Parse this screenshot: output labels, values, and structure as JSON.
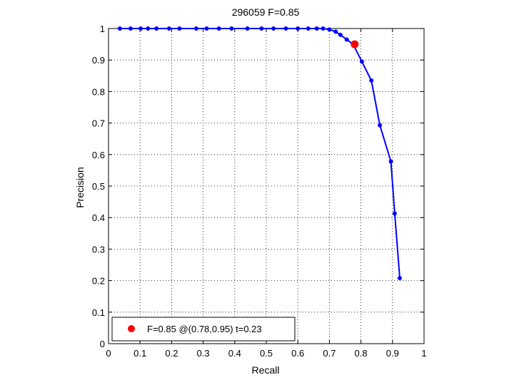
{
  "chart_data": {
    "type": "line",
    "title": "296059 F=0.85",
    "xlabel": "Recall",
    "ylabel": "Precision",
    "xlim": [
      0,
      1
    ],
    "ylim": [
      0,
      1
    ],
    "grid": true,
    "xticks": [
      "0",
      "0.1",
      "0.2",
      "0.3",
      "0.4",
      "0.5",
      "0.6",
      "0.7",
      "0.8",
      "0.9",
      "1"
    ],
    "yticks": [
      "0",
      "0.1",
      "0.2",
      "0.3",
      "0.4",
      "0.5",
      "0.6",
      "0.7",
      "0.8",
      "0.9",
      "1"
    ],
    "series": [
      {
        "color": "#0000ff",
        "x": [
          0.036,
          0.07,
          0.102,
          0.125,
          0.152,
          0.192,
          0.225,
          0.278,
          0.311,
          0.35,
          0.39,
          0.44,
          0.485,
          0.523,
          0.562,
          0.6,
          0.633,
          0.66,
          0.68,
          0.7,
          0.72,
          0.735,
          0.755,
          0.775,
          0.803,
          0.833,
          0.86,
          0.895,
          0.907,
          0.923
        ],
        "y": [
          1.0,
          1.0,
          1.0,
          1.0,
          1.0,
          1.0,
          1.0,
          1.0,
          1.0,
          1.0,
          1.0,
          1.0,
          1.0,
          1.0,
          1.0,
          1.0,
          1.0,
          1.0,
          1.0,
          0.997,
          0.99,
          0.98,
          0.965,
          0.95,
          0.895,
          0.835,
          0.693,
          0.578,
          0.413,
          0.208
        ]
      }
    ],
    "highlight": {
      "color": "#ff0000",
      "x": 0.78,
      "y": 0.95,
      "label": "F=0.85 @(0.78,0.95) t=0.23"
    },
    "legend_position": "bottom-left"
  }
}
